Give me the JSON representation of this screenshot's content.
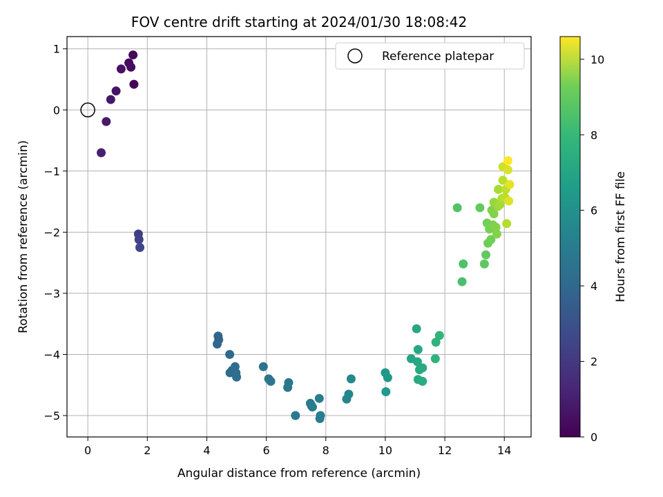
{
  "chart_data": {
    "type": "scatter",
    "title": "FOV centre drift starting at 2024/01/30 18:08:42",
    "xlabel": "Angular distance from reference (arcmin)",
    "ylabel": "Rotation from reference (arcmin)",
    "xlim": [
      -0.7,
      14.9
    ],
    "ylim": [
      -5.35,
      1.2
    ],
    "xticks": [
      0,
      2,
      4,
      6,
      8,
      10,
      12,
      14
    ],
    "yticks": [
      1,
      0,
      -1,
      -2,
      -3,
      -4,
      -5
    ],
    "xtick_labels": [
      "0",
      "2",
      "4",
      "6",
      "8",
      "10",
      "12",
      "14"
    ],
    "ytick_labels": [
      "1",
      "0",
      "−1",
      "−2",
      "−3",
      "−4",
      "−5"
    ],
    "grid": true,
    "legend": {
      "placement": "top-right",
      "entries": [
        "Reference platepar"
      ]
    },
    "reference_point": {
      "x": 0,
      "y": 0,
      "marker": "open-circle"
    },
    "colorbar": {
      "label": "Hours from first FF file",
      "colormap": "viridis",
      "range": [
        0,
        10.6
      ],
      "ticks": [
        0,
        2,
        4,
        6,
        8,
        10
      ],
      "tick_labels": [
        "0",
        "2",
        "4",
        "6",
        "8",
        "10"
      ]
    },
    "points": [
      [
        0.45,
        -0.7,
        0.9
      ],
      [
        0.62,
        -0.19,
        0.8
      ],
      [
        0.77,
        0.17,
        0.7
      ],
      [
        0.95,
        0.31,
        0.6
      ],
      [
        1.12,
        0.67,
        0.5
      ],
      [
        1.38,
        0.77,
        0.3
      ],
      [
        1.45,
        0.7,
        0.4
      ],
      [
        1.52,
        0.9,
        0.2
      ],
      [
        1.55,
        0.42,
        0.1
      ],
      [
        1.7,
        -2.03,
        2.0
      ],
      [
        1.72,
        -2.12,
        2.1
      ],
      [
        1.75,
        -2.25,
        2.2
      ],
      [
        4.38,
        -3.7,
        3.4
      ],
      [
        4.4,
        -3.76,
        3.4
      ],
      [
        4.35,
        -3.83,
        3.5
      ],
      [
        4.77,
        -4.0,
        3.6
      ],
      [
        4.78,
        -4.3,
        3.7
      ],
      [
        4.85,
        -4.26,
        3.7
      ],
      [
        4.95,
        -4.2,
        3.8
      ],
      [
        4.98,
        -4.3,
        3.8
      ],
      [
        5.0,
        -4.37,
        3.8
      ],
      [
        5.9,
        -4.2,
        4.0
      ],
      [
        6.08,
        -4.4,
        4.1
      ],
      [
        6.15,
        -4.44,
        4.1
      ],
      [
        6.75,
        -4.46,
        4.2
      ],
      [
        6.72,
        -4.54,
        4.2
      ],
      [
        6.98,
        -5.0,
        4.3
      ],
      [
        7.48,
        -4.8,
        4.4
      ],
      [
        7.55,
        -4.86,
        4.4
      ],
      [
        7.52,
        -4.84,
        4.4
      ],
      [
        7.78,
        -4.72,
        4.5
      ],
      [
        7.82,
        -5.0,
        4.5
      ],
      [
        7.8,
        -5.05,
        4.5
      ],
      [
        8.7,
        -4.73,
        4.9
      ],
      [
        8.77,
        -4.65,
        4.9
      ],
      [
        8.85,
        -4.4,
        5.0
      ],
      [
        10.0,
        -4.3,
        5.6
      ],
      [
        10.08,
        -4.38,
        5.6
      ],
      [
        10.02,
        -4.61,
        5.7
      ],
      [
        10.87,
        -4.07,
        6.2
      ],
      [
        11.05,
        -3.58,
        6.3
      ],
      [
        11.1,
        -3.92,
        6.3
      ],
      [
        11.08,
        -4.12,
        6.3
      ],
      [
        11.15,
        -4.25,
        6.4
      ],
      [
        11.25,
        -4.22,
        6.4
      ],
      [
        11.1,
        -4.41,
        6.4
      ],
      [
        11.25,
        -4.44,
        6.5
      ],
      [
        11.7,
        -3.8,
        6.8
      ],
      [
        11.68,
        -4.07,
        6.8
      ],
      [
        11.82,
        -3.69,
        6.9
      ],
      [
        12.42,
        -1.6,
        7.7
      ],
      [
        12.62,
        -2.52,
        7.6
      ],
      [
        12.58,
        -2.81,
        7.5
      ],
      [
        13.18,
        -1.6,
        8.0
      ],
      [
        13.33,
        -2.52,
        7.9
      ],
      [
        13.38,
        -2.37,
        8.0
      ],
      [
        13.45,
        -2.18,
        8.2
      ],
      [
        13.42,
        -1.85,
        8.3
      ],
      [
        13.5,
        -1.95,
        8.4
      ],
      [
        13.55,
        -2.12,
        8.3
      ],
      [
        13.58,
        -1.64,
        8.5
      ],
      [
        13.65,
        -1.7,
        8.6
      ],
      [
        13.62,
        -1.88,
        8.5
      ],
      [
        13.72,
        -1.92,
        8.6
      ],
      [
        13.75,
        -2.03,
        8.6
      ],
      [
        13.65,
        -1.51,
        8.9
      ],
      [
        13.78,
        -1.58,
        9.0
      ],
      [
        13.8,
        -1.3,
        9.2
      ],
      [
        13.85,
        -1.55,
        9.1
      ],
      [
        13.92,
        -1.45,
        9.3
      ],
      [
        13.95,
        -1.15,
        9.5
      ],
      [
        14.05,
        -1.3,
        9.6
      ],
      [
        14.02,
        -1.43,
        9.5
      ],
      [
        14.08,
        -1.86,
        9.4
      ],
      [
        13.95,
        -0.93,
        9.8
      ],
      [
        14.12,
        -0.98,
        10.0
      ],
      [
        14.18,
        -1.22,
        10.2
      ],
      [
        14.15,
        -1.49,
        10.1
      ],
      [
        14.12,
        -0.83,
        10.6
      ]
    ]
  }
}
